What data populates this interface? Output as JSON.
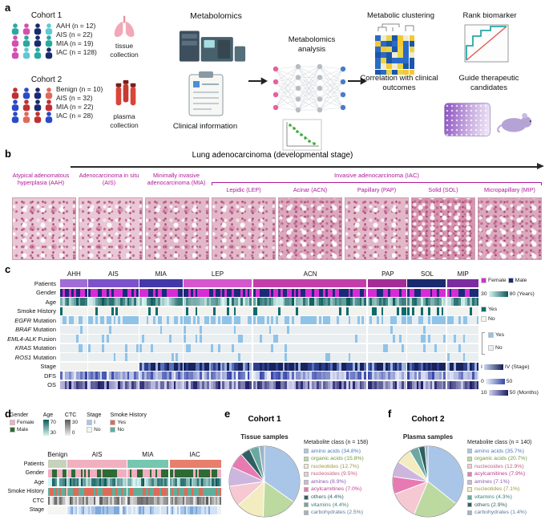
{
  "figure": {
    "panel_a": {
      "label": "a",
      "cohort1": {
        "title": "Cohort 1",
        "lines": [
          "AAH (n = 12)",
          "AIS (n = 22)",
          "MIA (n = 19)",
          "IAC (n = 128)"
        ],
        "collection": "tissue collection",
        "people_colors": [
          "#2aa8a0",
          "#d44fb0",
          "#1a2a6e",
          "#5fc9d4",
          "#d44fb0",
          "#2aa8a0",
          "#1a2a6e",
          "#2aa8a0",
          "#d44fb0",
          "#5fc9d4",
          "#2aa8a0",
          "#1a2a6e"
        ]
      },
      "cohort2": {
        "title": "Cohort 2",
        "lines": [
          "Benign (n = 10)",
          "AIS (n = 32)",
          "MIA (n = 22)",
          "IAC (n = 28)"
        ],
        "collection": "plasma collection",
        "people_colors": [
          "#c03030",
          "#2a4ac8",
          "#1a2a6e",
          "#e06a5a",
          "#2a4ac8",
          "#c03030",
          "#1a2a6e",
          "#c03030",
          "#2a4ac8",
          "#e06a5a",
          "#c03030",
          "#2a4ac8"
        ]
      },
      "metabolomics": "Metabolomics",
      "clinical": "Clinical information",
      "analysis": "Metabolomics analysis",
      "clustering": "Metabolic clustering",
      "correlation": "Correlation with clinical outcomes",
      "rank": "Rank biomarker",
      "guide": "Guide therapeutic candidates"
    },
    "panel_b": {
      "label": "b",
      "title": "Lung adenocarcinoma (developmental stage)",
      "accent": "#b0189c",
      "stage_labels": [
        "Atypical adenomatous hyperplasia (AAH)",
        "Adenocarcinoma in situ (AIS)",
        "Minimally invasive adenocarcinoma (MIA)"
      ],
      "iac_label": "Invasive adenocarcinoma (IAC)",
      "iac_subtypes": [
        "Lepidic (LEP)",
        "Acinar (ACN)",
        "Papillary (PAP)",
        "Solid (SOL)",
        "Micropapillary (MIP)"
      ]
    },
    "panel_c": {
      "label": "c",
      "groups": [
        {
          "label": "AHH",
          "n": 12,
          "color": "#a06cd5"
        },
        {
          "label": "AIS",
          "n": 22,
          "color": "#7b52c9"
        },
        {
          "label": "MIA",
          "n": 19,
          "color": "#4338a8"
        },
        {
          "label": "LEP",
          "n": 30,
          "color": "#d557cd"
        },
        {
          "label": "ACN",
          "n": 50,
          "color": "#c23fa8"
        },
        {
          "label": "PAP",
          "n": 17,
          "color": "#a32d96"
        },
        {
          "label": "SOL",
          "n": 17,
          "color": "#1a2a6e"
        },
        {
          "label": "MIP",
          "n": 14,
          "color": "#7a2d9e"
        }
      ],
      "rows": [
        {
          "label": "Patients",
          "mode": "groups"
        },
        {
          "label": "Gender",
          "mode": "cat",
          "palette": [
            "#d62bd6",
            "#1b2a78"
          ],
          "weights": [
            0.52,
            0.48
          ]
        },
        {
          "label": "Age",
          "mode": "grad",
          "from": "#d8f5f2",
          "to": "#0a5a5a"
        },
        {
          "label": "Smoke History",
          "mode": "cat",
          "palette": [
            "#f2f2ee",
            "#0e6b6b"
          ],
          "weights": [
            0.82,
            0.18
          ]
        },
        {
          "italic": "EGFR",
          "label": " Mutation",
          "mode": "cat",
          "palette": [
            "#e9eef1",
            "#8fc3e8"
          ],
          "weights": [
            0.5,
            0.5
          ]
        },
        {
          "italic": "BRAF",
          "label": " Mutation",
          "mode": "cat",
          "palette": [
            "#e9eef1",
            "#8fc3e8"
          ],
          "weights": [
            0.95,
            0.05
          ]
        },
        {
          "italic": "EML4-ALK",
          "label": " Fusion",
          "mode": "cat",
          "palette": [
            "#e9eef1",
            "#8fc3e8"
          ],
          "weights": [
            0.89,
            0.11
          ]
        },
        {
          "italic": "KRAS",
          "label": " Mutation",
          "mode": "cat",
          "palette": [
            "#e9eef1",
            "#8fc3e8"
          ],
          "weights": [
            0.88,
            0.12
          ]
        },
        {
          "italic": "ROS1",
          "label": " Mutation",
          "mode": "cat",
          "palette": [
            "#e9eef1",
            "#8fc3e8"
          ],
          "weights": [
            0.96,
            0.04
          ]
        },
        {
          "label": "Stage",
          "mode": "split",
          "split": 34,
          "palette_a": [
            "#f0f0ee"
          ],
          "weights_a": [
            1
          ],
          "palette_b": [
            "#18235e",
            "#2c3f8f",
            "#9fb6dd",
            "#5870b8"
          ],
          "weights_b": [
            0.45,
            0.25,
            0.15,
            0.15
          ]
        },
        {
          "label": "DFS",
          "mode": "grad",
          "from": "#eef2fb",
          "to": "#3546a8"
        },
        {
          "label": "OS",
          "mode": "grad",
          "from": "#d4d4f2",
          "to": "#1c1c66"
        }
      ],
      "legend": {
        "female": "Female",
        "male": "Male",
        "female_color": "#d62bd6",
        "male_color": "#1b2a78",
        "age_min": "30",
        "age_max": "80",
        "age_unit": "(Years)",
        "age_from": "#d8f5f2",
        "age_to": "#0a5a5a",
        "smoke_yes": "Yes",
        "smoke_no": "No",
        "smoke_yes_color": "#0e6b6b",
        "smoke_no_color": "#f4f4f0",
        "mut_yes": "Yes",
        "mut_no": "No",
        "mut_yes_color": "#8fc3e8",
        "mut_no_color": "#e9eef1",
        "stage_min": "I",
        "stage_max": "IV (Stage)",
        "stage_from": "#c8d6f0",
        "stage_to": "#131d54",
        "dfs_min": "0",
        "dfs_max": "50",
        "dfs_from": "#eef2fb",
        "dfs_to": "#3546a8",
        "os_min": "10",
        "os_max": "50",
        "os_unit": "(Months)",
        "os_from": "#d4d4f2",
        "os_to": "#1c1c66"
      }
    },
    "panel_d": {
      "label": "d",
      "groups": [
        {
          "label": "Benign",
          "n": 10,
          "color": "#c6d2bc"
        },
        {
          "label": "AIS",
          "n": 32,
          "color": "#f0b0bf"
        },
        {
          "label": "MIA",
          "n": 22,
          "color": "#76c6b0"
        },
        {
          "label": "IAC",
          "n": 28,
          "color": "#e87f6d"
        }
      ],
      "rows": [
        {
          "label": "Patients",
          "mode": "groups"
        },
        {
          "label": "Gender",
          "mode": "cat",
          "palette": [
            "#f2aec2",
            "#2e6b34"
          ],
          "weights": [
            0.5,
            0.5
          ]
        },
        {
          "label": "Age",
          "mode": "grad",
          "from": "#d8f5f2",
          "to": "#0a5a5a"
        },
        {
          "label": "Smoke History",
          "mode": "cat",
          "palette": [
            "#5fae9c",
            "#e06a58"
          ],
          "weights": [
            0.62,
            0.38
          ]
        },
        {
          "label": "CTC",
          "mode": "grad",
          "from": "#f0f0f0",
          "to": "#585858"
        },
        {
          "label": "Stage",
          "mode": "split",
          "split": 10,
          "palette_a": [
            "#f5f5f3"
          ],
          "weights_a": [
            1
          ],
          "palette_b": [
            "#d2e2f4",
            "#a8c6ea",
            "#7ea8dc",
            "#eef2f6"
          ],
          "weights_b": [
            0.35,
            0.3,
            0.2,
            0.15
          ]
        }
      ],
      "legend": {
        "gender_title": "Gender",
        "female": "Female",
        "male": "Male",
        "female_color": "#f2aec2",
        "male_color": "#2e6b34",
        "age_title": "Age",
        "age_top": "70",
        "age_bottom": "30",
        "age_from": "#0a5a5a",
        "age_to": "#d8f5f2",
        "ctc_title": "CTC",
        "ctc_top": "30",
        "ctc_bottom": "0",
        "ctc_from": "#585858",
        "ctc_to": "#f0f0f0",
        "stage_title": "Stage",
        "stage_a": "I",
        "stage_b": "No",
        "stage_a_color": "#a8c6ea",
        "stage_b_color": "#f5f5f3",
        "smoke_title": "Smoke History",
        "smoke_yes": "Yes",
        "smoke_no": "No",
        "smoke_yes_color": "#e06a58",
        "smoke_no_color": "#5fae9c"
      }
    },
    "panel_e": {
      "label": "e"
    },
    "panel_f": {
      "label": "f"
    }
  },
  "chart_data": [
    {
      "type": "pie",
      "title": "Cohort 1",
      "subtitle": "Tissue samples",
      "legend_title": "Metabolite class (n = 158)",
      "slices": [
        {
          "name": "amino acids",
          "pct": 34.8,
          "pct_label": "34.8",
          "color": "#a9c6e8",
          "label_color": "#4a78c0"
        },
        {
          "name": "organic acids",
          "pct": 15.8,
          "pct_label": "15.8",
          "color": "#bcd9a0",
          "label_color": "#6a9a3a"
        },
        {
          "name": "nucleotides",
          "pct": 12.7,
          "pct_label": "12.7",
          "color": "#f2ecc0",
          "label_color": "#a0983a"
        },
        {
          "name": "nucleosides",
          "pct": 9.5,
          "pct_label": "9.5",
          "color": "#f5c8d2",
          "label_color": "#c06080"
        },
        {
          "name": "amines",
          "pct": 8.9,
          "pct_label": "8.9",
          "color": "#cdb6de",
          "label_color": "#8a5ab0"
        },
        {
          "name": "acylcarnitines",
          "pct": 7.0,
          "pct_label": "7.0",
          "color": "#e87ab2",
          "label_color": "#c03a8a"
        },
        {
          "name": "others",
          "pct": 4.4,
          "pct_label": "4.4",
          "color": "#2e5f63",
          "label_color": "#2e5f63"
        },
        {
          "name": "vitamins",
          "pct": 4.4,
          "pct_label": "4.4",
          "color": "#6aa9a2",
          "label_color": "#3a8078"
        },
        {
          "name": "carbohydrates",
          "pct": 2.5,
          "pct_label": "2.5",
          "color": "#9fb3c8",
          "label_color": "#5a7a9a"
        }
      ]
    },
    {
      "type": "pie",
      "title": "Cohort 2",
      "subtitle": "Plasma samples",
      "legend_title": "Metabolite class (n = 140)",
      "slices": [
        {
          "name": "amino acids",
          "pct": 35.7,
          "pct_label": "35.7",
          "color": "#a9c6e8",
          "label_color": "#4a78c0"
        },
        {
          "name": "organic acids",
          "pct": 20.7,
          "pct_label": "20.7",
          "color": "#bcd9a0",
          "label_color": "#6a9a3a"
        },
        {
          "name": "nucleosides",
          "pct": 12.9,
          "pct_label": "12.9",
          "color": "#f5c8d2",
          "label_color": "#c06080"
        },
        {
          "name": "acylcarnitines",
          "pct": 7.9,
          "pct_label": "7.9",
          "color": "#e87ab2",
          "label_color": "#c03a8a"
        },
        {
          "name": "amines",
          "pct": 7.1,
          "pct_label": "7.1",
          "color": "#cdb6de",
          "label_color": "#8a5ab0"
        },
        {
          "name": "nucleotides",
          "pct": 7.1,
          "pct_label": "7.1",
          "color": "#f2ecc0",
          "label_color": "#a0983a"
        },
        {
          "name": "vitamins",
          "pct": 4.3,
          "pct_label": "4.3",
          "color": "#6aa9a2",
          "label_color": "#3a8078"
        },
        {
          "name": "others",
          "pct": 2.9,
          "pct_label": "2.9",
          "color": "#2e5f63",
          "label_color": "#2e5f63"
        },
        {
          "name": "carbohydrates",
          "pct": 1.4,
          "pct_label": "1.4",
          "color": "#9fb3c8",
          "label_color": "#5a7a9a"
        }
      ]
    }
  ]
}
